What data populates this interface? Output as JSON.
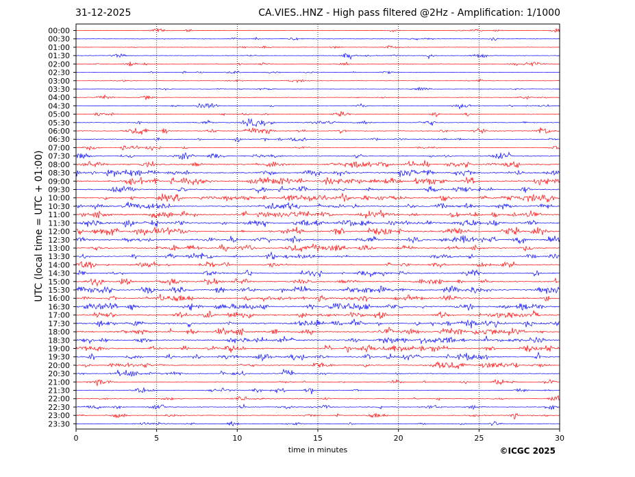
{
  "header": {
    "date": "31-12-2025",
    "title": "CA.VIES..HNZ - High pass filtered @2Hz - Amplification: 1/1000"
  },
  "footer": {
    "copyright": "©ICGC 2025"
  },
  "colors": {
    "even_row": "#ff0000",
    "odd_row": "#0000ff",
    "grid": "#000000"
  },
  "chart_data": {
    "type": "line",
    "xlabel": "time in minutes",
    "ylabel": "UTC (local time = UTC + 01:00)",
    "xlim": [
      0,
      30
    ],
    "x_ticks": [
      "0",
      "5",
      "10",
      "15",
      "20",
      "25",
      "30"
    ],
    "grid": "vertical dotted lines at 5-minute intervals",
    "rows": [
      {
        "label": "00:00",
        "activity": 0.15
      },
      {
        "label": "00:30",
        "activity": 0.15
      },
      {
        "label": "01:00",
        "activity": 0.12
      },
      {
        "label": "01:30",
        "activity": 0.2
      },
      {
        "label": "02:00",
        "activity": 0.25
      },
      {
        "label": "02:30",
        "activity": 0.18
      },
      {
        "label": "03:00",
        "activity": 0.1
      },
      {
        "label": "03:30",
        "activity": 0.12
      },
      {
        "label": "04:00",
        "activity": 0.15
      },
      {
        "label": "04:30",
        "activity": 0.25
      },
      {
        "label": "05:00",
        "activity": 0.2
      },
      {
        "label": "05:30",
        "activity": 0.35
      },
      {
        "label": "06:00",
        "activity": 0.45
      },
      {
        "label": "06:30",
        "activity": 0.4
      },
      {
        "label": "07:00",
        "activity": 0.3
      },
      {
        "label": "07:30",
        "activity": 0.5
      },
      {
        "label": "08:00",
        "activity": 0.7
      },
      {
        "label": "08:30",
        "activity": 0.85
      },
      {
        "label": "09:00",
        "activity": 0.9
      },
      {
        "label": "09:30",
        "activity": 0.7
      },
      {
        "label": "10:00",
        "activity": 0.85
      },
      {
        "label": "10:30",
        "activity": 0.8
      },
      {
        "label": "11:00",
        "activity": 0.9
      },
      {
        "label": "11:30",
        "activity": 0.95
      },
      {
        "label": "12:00",
        "activity": 0.95
      },
      {
        "label": "12:30",
        "activity": 0.85
      },
      {
        "label": "13:00",
        "activity": 0.8
      },
      {
        "label": "13:30",
        "activity": 0.6
      },
      {
        "label": "14:00",
        "activity": 0.6
      },
      {
        "label": "14:30",
        "activity": 0.65
      },
      {
        "label": "15:00",
        "activity": 0.7
      },
      {
        "label": "15:30",
        "activity": 0.85
      },
      {
        "label": "16:00",
        "activity": 0.8
      },
      {
        "label": "16:30",
        "activity": 0.95
      },
      {
        "label": "17:00",
        "activity": 0.85
      },
      {
        "label": "17:30",
        "activity": 0.85
      },
      {
        "label": "18:00",
        "activity": 0.85
      },
      {
        "label": "18:30",
        "activity": 0.75
      },
      {
        "label": "19:00",
        "activity": 0.8
      },
      {
        "label": "19:30",
        "activity": 0.7
      },
      {
        "label": "20:00",
        "activity": 0.6
      },
      {
        "label": "20:30",
        "activity": 0.45
      },
      {
        "label": "21:00",
        "activity": 0.35
      },
      {
        "label": "21:30",
        "activity": 0.35
      },
      {
        "label": "22:00",
        "activity": 0.3
      },
      {
        "label": "22:30",
        "activity": 0.4
      },
      {
        "label": "23:00",
        "activity": 0.35
      },
      {
        "label": "23:30",
        "activity": 0.25
      }
    ]
  }
}
